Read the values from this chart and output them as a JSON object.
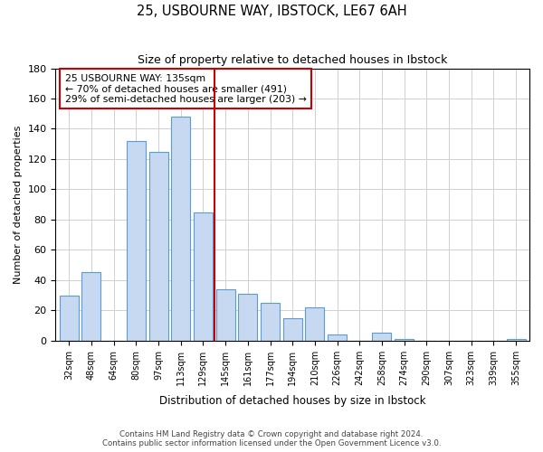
{
  "title": "25, USBOURNE WAY, IBSTOCK, LE67 6AH",
  "subtitle": "Size of property relative to detached houses in Ibstock",
  "xlabel": "Distribution of detached houses by size in Ibstock",
  "ylabel": "Number of detached properties",
  "bar_labels": [
    "32sqm",
    "48sqm",
    "64sqm",
    "80sqm",
    "97sqm",
    "113sqm",
    "129sqm",
    "145sqm",
    "161sqm",
    "177sqm",
    "194sqm",
    "210sqm",
    "226sqm",
    "242sqm",
    "258sqm",
    "274sqm",
    "290sqm",
    "307sqm",
    "323sqm",
    "339sqm",
    "355sqm"
  ],
  "bar_values": [
    30,
    45,
    0,
    132,
    125,
    148,
    85,
    34,
    31,
    25,
    15,
    22,
    4,
    0,
    5,
    1,
    0,
    0,
    0,
    0,
    1
  ],
  "bar_color": "#c6d9f1",
  "bar_edge_color": "#5b9bd5",
  "vline_x": 6.5,
  "vline_color": "#cc0000",
  "annotation_title": "25 USBOURNE WAY: 135sqm",
  "annotation_line1": "← 70% of detached houses are smaller (491)",
  "annotation_line2": "29% of semi-detached houses are larger (203) →",
  "annotation_box_color": "#ffffff",
  "annotation_box_edge": "#cc0000",
  "ylim": [
    0,
    180
  ],
  "yticks": [
    0,
    20,
    40,
    60,
    80,
    100,
    120,
    140,
    160,
    180
  ],
  "footnote1": "Contains HM Land Registry data © Crown copyright and database right 2024.",
  "footnote2": "Contains public sector information licensed under the Open Government Licence v3.0.",
  "background_color": "#ffffff",
  "grid_color": "#d0d0d0"
}
